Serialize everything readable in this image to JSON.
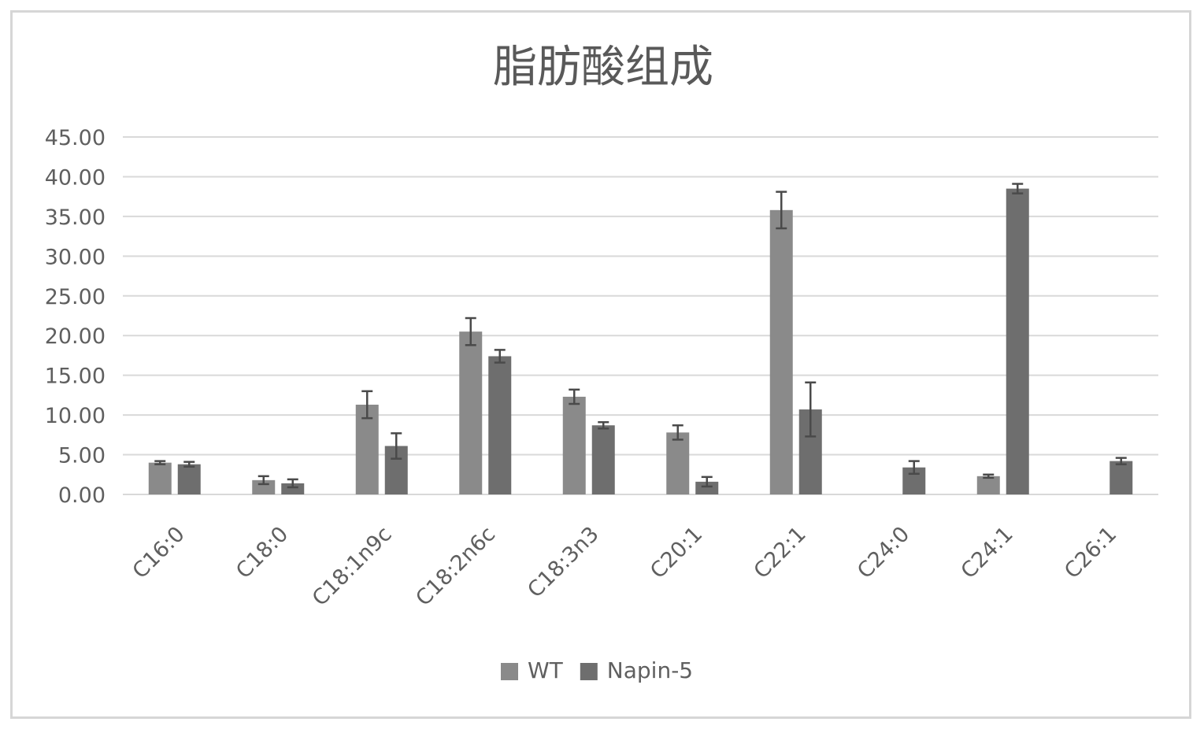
{
  "chart_data": {
    "type": "bar",
    "title": "脂肪酸组成",
    "xlabel": "",
    "ylabel": "",
    "ylim": [
      0,
      45
    ],
    "y_ticks": [
      "0.00",
      "5.00",
      "10.00",
      "15.00",
      "20.00",
      "25.00",
      "30.00",
      "35.00",
      "40.00",
      "45.00"
    ],
    "y_tick_values": [
      0,
      5,
      10,
      15,
      20,
      25,
      30,
      35,
      40,
      45
    ],
    "categories": [
      "C16:0",
      "C18:0",
      "C18:1n9c",
      "C18:2n6c",
      "C18:3n3",
      "C20:1",
      "C22:1",
      "C24:0",
      "C24:1",
      "C26:1"
    ],
    "series": [
      {
        "name": "WT",
        "color": "#8a8a8a",
        "values": [
          4.0,
          1.8,
          11.3,
          20.5,
          12.3,
          7.8,
          35.8,
          0,
          2.3,
          0
        ],
        "errors": [
          0.2,
          0.5,
          1.7,
          1.7,
          0.9,
          0.9,
          2.3,
          0,
          0.2,
          0
        ]
      },
      {
        "name": "Napin-5",
        "color": "#6e6e6e",
        "values": [
          3.8,
          1.4,
          6.1,
          17.4,
          8.7,
          1.6,
          10.7,
          3.4,
          38.5,
          4.2
        ],
        "errors": [
          0.3,
          0.5,
          1.6,
          0.8,
          0.4,
          0.6,
          3.4,
          0.8,
          0.6,
          0.4
        ]
      }
    ],
    "grid": true,
    "legend_position": "bottom-center",
    "error_bar_color": "#4a4a4a",
    "gridline_color": "#d9d9d9",
    "text_color": "#5f5f5f"
  }
}
